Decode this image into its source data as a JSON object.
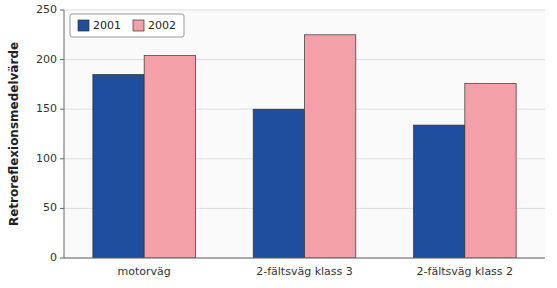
{
  "chart_data": {
    "type": "bar",
    "categories": [
      "motorväg",
      "2-fältsväg klass 3",
      "2-fältsväg klass 2"
    ],
    "series": [
      {
        "name": "2001",
        "color": "#1f4e9e",
        "values": [
          185,
          150,
          134
        ]
      },
      {
        "name": "2002",
        "color": "#f4a0a8",
        "values": [
          204,
          225,
          176
        ]
      }
    ],
    "ylabel": "Retroreflexionsmedelvärde",
    "ylim": [
      0,
      250
    ],
    "yticks": [
      0,
      50,
      100,
      150,
      200,
      250
    ],
    "grid": true,
    "legend": "upper left"
  }
}
